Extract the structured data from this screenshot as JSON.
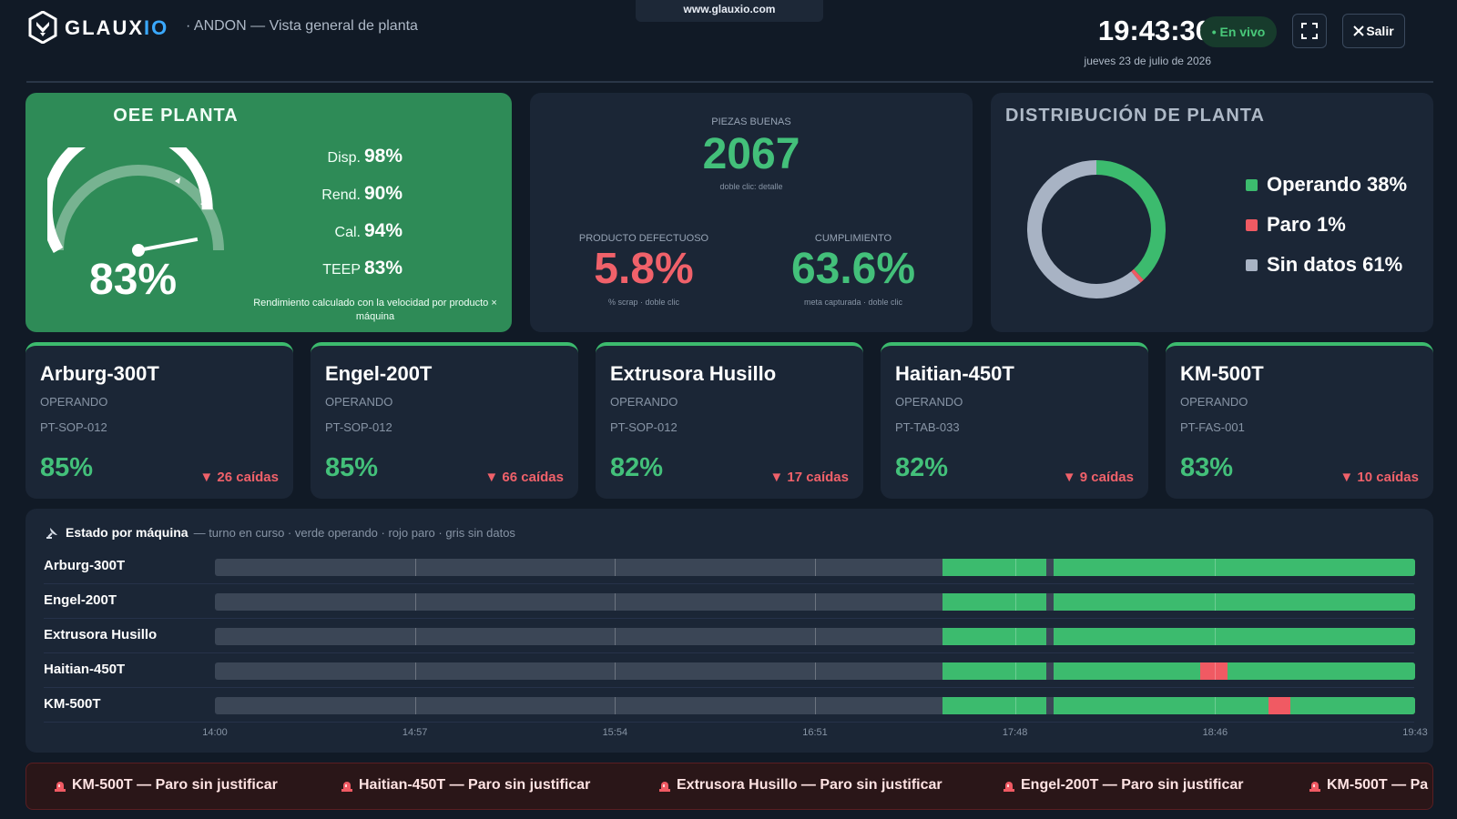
{
  "browser": {
    "url": "www.glauxio.com"
  },
  "header": {
    "logo_main": "GLAUX",
    "logo_accent": "IO",
    "subtitle": "· ANDON — Vista general de planta",
    "clock": "19:43:36",
    "date": "jueves 23 de julio de 2026",
    "live_label": "• En vivo",
    "exit_label": "Salir"
  },
  "oee": {
    "title": "OEE PLANTA",
    "value_label": "83%",
    "value": 83,
    "metrics": [
      {
        "label": "Disp.",
        "value": "98%"
      },
      {
        "label": "Rend.",
        "value": "90%"
      },
      {
        "label": "Cal.",
        "value": "94%"
      },
      {
        "label": "TEEP",
        "value": "83%"
      }
    ],
    "note": "Rendimiento calculado con la velocidad por producto × máquina"
  },
  "kpis": {
    "good_pieces": {
      "caption": "PIEZAS BUENAS",
      "value": "2067",
      "sub": "doble clic: detalle"
    },
    "defective": {
      "caption": "PRODUCTO DEFECTUOSO",
      "value": "5.8%",
      "sub": "% scrap · doble clic"
    },
    "compliance": {
      "caption": "CUMPLIMIENTO",
      "value": "63.6%",
      "sub": "meta capturada · doble clic"
    }
  },
  "distribution": {
    "title": "DISTRIBUCIÓN DE PLANTA",
    "items": [
      {
        "label": "Operando 38%",
        "percent": 38,
        "color": "#3cbb6e"
      },
      {
        "label": "Paro 1%",
        "percent": 1,
        "color": "#f05a63"
      },
      {
        "label": "Sin datos 61%",
        "percent": 61,
        "color": "#a8b3c4"
      }
    ]
  },
  "machines": [
    {
      "name": "Arburg-300T",
      "status": "OPERANDO",
      "code": "PT-SOP-012",
      "oee": "85%",
      "drops": "▼ 26 caídas"
    },
    {
      "name": "Engel-200T",
      "status": "OPERANDO",
      "code": "PT-SOP-012",
      "oee": "85%",
      "drops": "▼ 66 caídas"
    },
    {
      "name": "Extrusora Husillo",
      "status": "OPERANDO",
      "code": "PT-SOP-012",
      "oee": "82%",
      "drops": "▼ 17 caídas"
    },
    {
      "name": "Haitian-450T",
      "status": "OPERANDO",
      "code": "PT-TAB-033",
      "oee": "82%",
      "drops": "▼ 9 caídas"
    },
    {
      "name": "KM-500T",
      "status": "OPERANDO",
      "code": "PT-FAS-001",
      "oee": "83%",
      "drops": "▼ 10 caídas"
    }
  ],
  "timeline": {
    "title": "Estado por máquina",
    "subtitle": "— turno en curso · verde operando · rojo paro · gris sin datos",
    "ticks": [
      "14:00",
      "14:57",
      "15:54",
      "16:51",
      "17:48",
      "18:46",
      "19:43"
    ],
    "rows": [
      {
        "name": "Arburg-300T",
        "segments": [
          {
            "from": 0.606,
            "to": 0.693,
            "state": "on"
          },
          {
            "from": 0.699,
            "to": 1.0,
            "state": "on"
          }
        ]
      },
      {
        "name": "Engel-200T",
        "segments": [
          {
            "from": 0.606,
            "to": 0.693,
            "state": "on"
          },
          {
            "from": 0.699,
            "to": 1.0,
            "state": "on"
          }
        ]
      },
      {
        "name": "Extrusora Husillo",
        "segments": [
          {
            "from": 0.606,
            "to": 0.693,
            "state": "on"
          },
          {
            "from": 0.699,
            "to": 1.0,
            "state": "on"
          }
        ]
      },
      {
        "name": "Haitian-450T",
        "segments": [
          {
            "from": 0.606,
            "to": 0.693,
            "state": "on"
          },
          {
            "from": 0.699,
            "to": 1.0,
            "state": "on"
          },
          {
            "from": 0.821,
            "to": 0.844,
            "state": "off"
          }
        ]
      },
      {
        "name": "KM-500T",
        "segments": [
          {
            "from": 0.606,
            "to": 0.693,
            "state": "on"
          },
          {
            "from": 0.699,
            "to": 1.0,
            "state": "on"
          },
          {
            "from": 0.878,
            "to": 0.896,
            "state": "off"
          }
        ]
      }
    ]
  },
  "alerts": [
    "KM-500T — Paro sin justificar",
    "Haitian-450T — Paro sin justificar",
    "Extrusora Husillo — Paro sin justificar",
    "Engel-200T — Paro sin justificar",
    "KM-500T — Pa"
  ]
}
